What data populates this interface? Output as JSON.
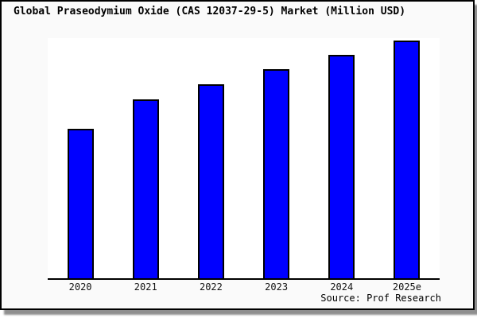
{
  "window": {
    "card_background": "#fafafa",
    "plot_background": "#ffffff",
    "border_color": "#000000",
    "shadow_color": "#8f8f8f"
  },
  "chart_data": {
    "type": "bar",
    "title": "Global Praseodymium Oxide (CAS 12037-29-5) Market (Million USD)",
    "categories": [
      "2020",
      "2021",
      "2022",
      "2023",
      "2024",
      "2025e"
    ],
    "values_pct_of_plot_height": [
      62.1,
      74.5,
      80.8,
      87.0,
      93.0,
      99.0
    ],
    "units_hint": "Million USD (numeric y-axis values not shown in image)",
    "xlabel": "",
    "ylabel": "",
    "y_axis_ticks": "none",
    "gridlines": false,
    "legend": "none",
    "bar_fill_color": "#0000ff",
    "bar_border_color": "#000000",
    "source_note": "Source: Prof Research"
  }
}
